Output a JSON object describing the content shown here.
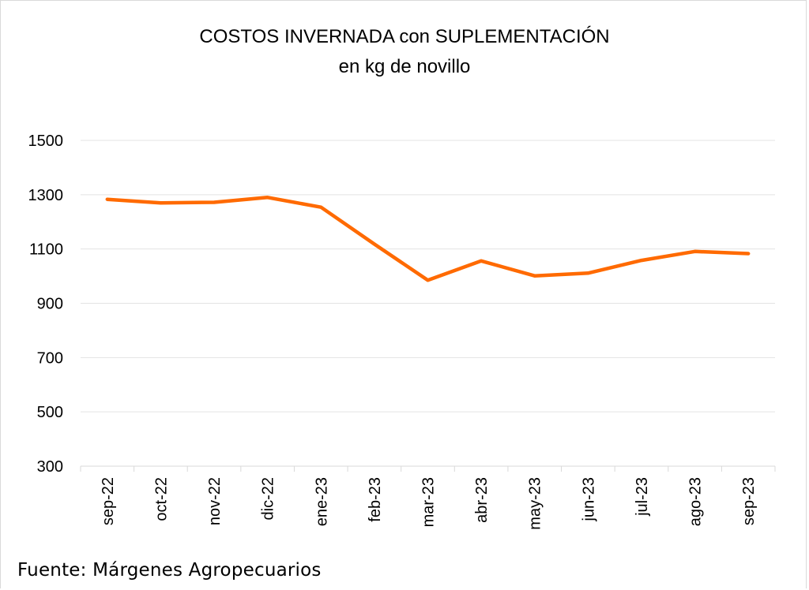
{
  "chart_data": {
    "type": "line",
    "title": "COSTOS INVERNADA con SUPLEMENTACIÓN",
    "subtitle": "en kg de novillo",
    "xlabel": "",
    "ylabel": "",
    "ylim": [
      300,
      1500
    ],
    "yticks": [
      300,
      500,
      700,
      900,
      1100,
      1300,
      1500
    ],
    "grid": true,
    "legend": "none",
    "categories": [
      "sep-22",
      "oct-22",
      "nov-22",
      "dic-22",
      "ene-23",
      "feb-23",
      "mar-23",
      "abr-23",
      "may-23",
      "jun-23",
      "jul-23",
      "ago-23",
      "sep-23"
    ],
    "series": [
      {
        "name": "Costos invernada con suplementación",
        "color": "#FF6A00",
        "values": [
          1283,
          1270,
          1272,
          1290,
          1254,
          1118,
          985,
          1056,
          1001,
          1011,
          1058,
          1091,
          1083
        ]
      }
    ]
  },
  "source": "Fuente: Márgenes Agropecuarios"
}
